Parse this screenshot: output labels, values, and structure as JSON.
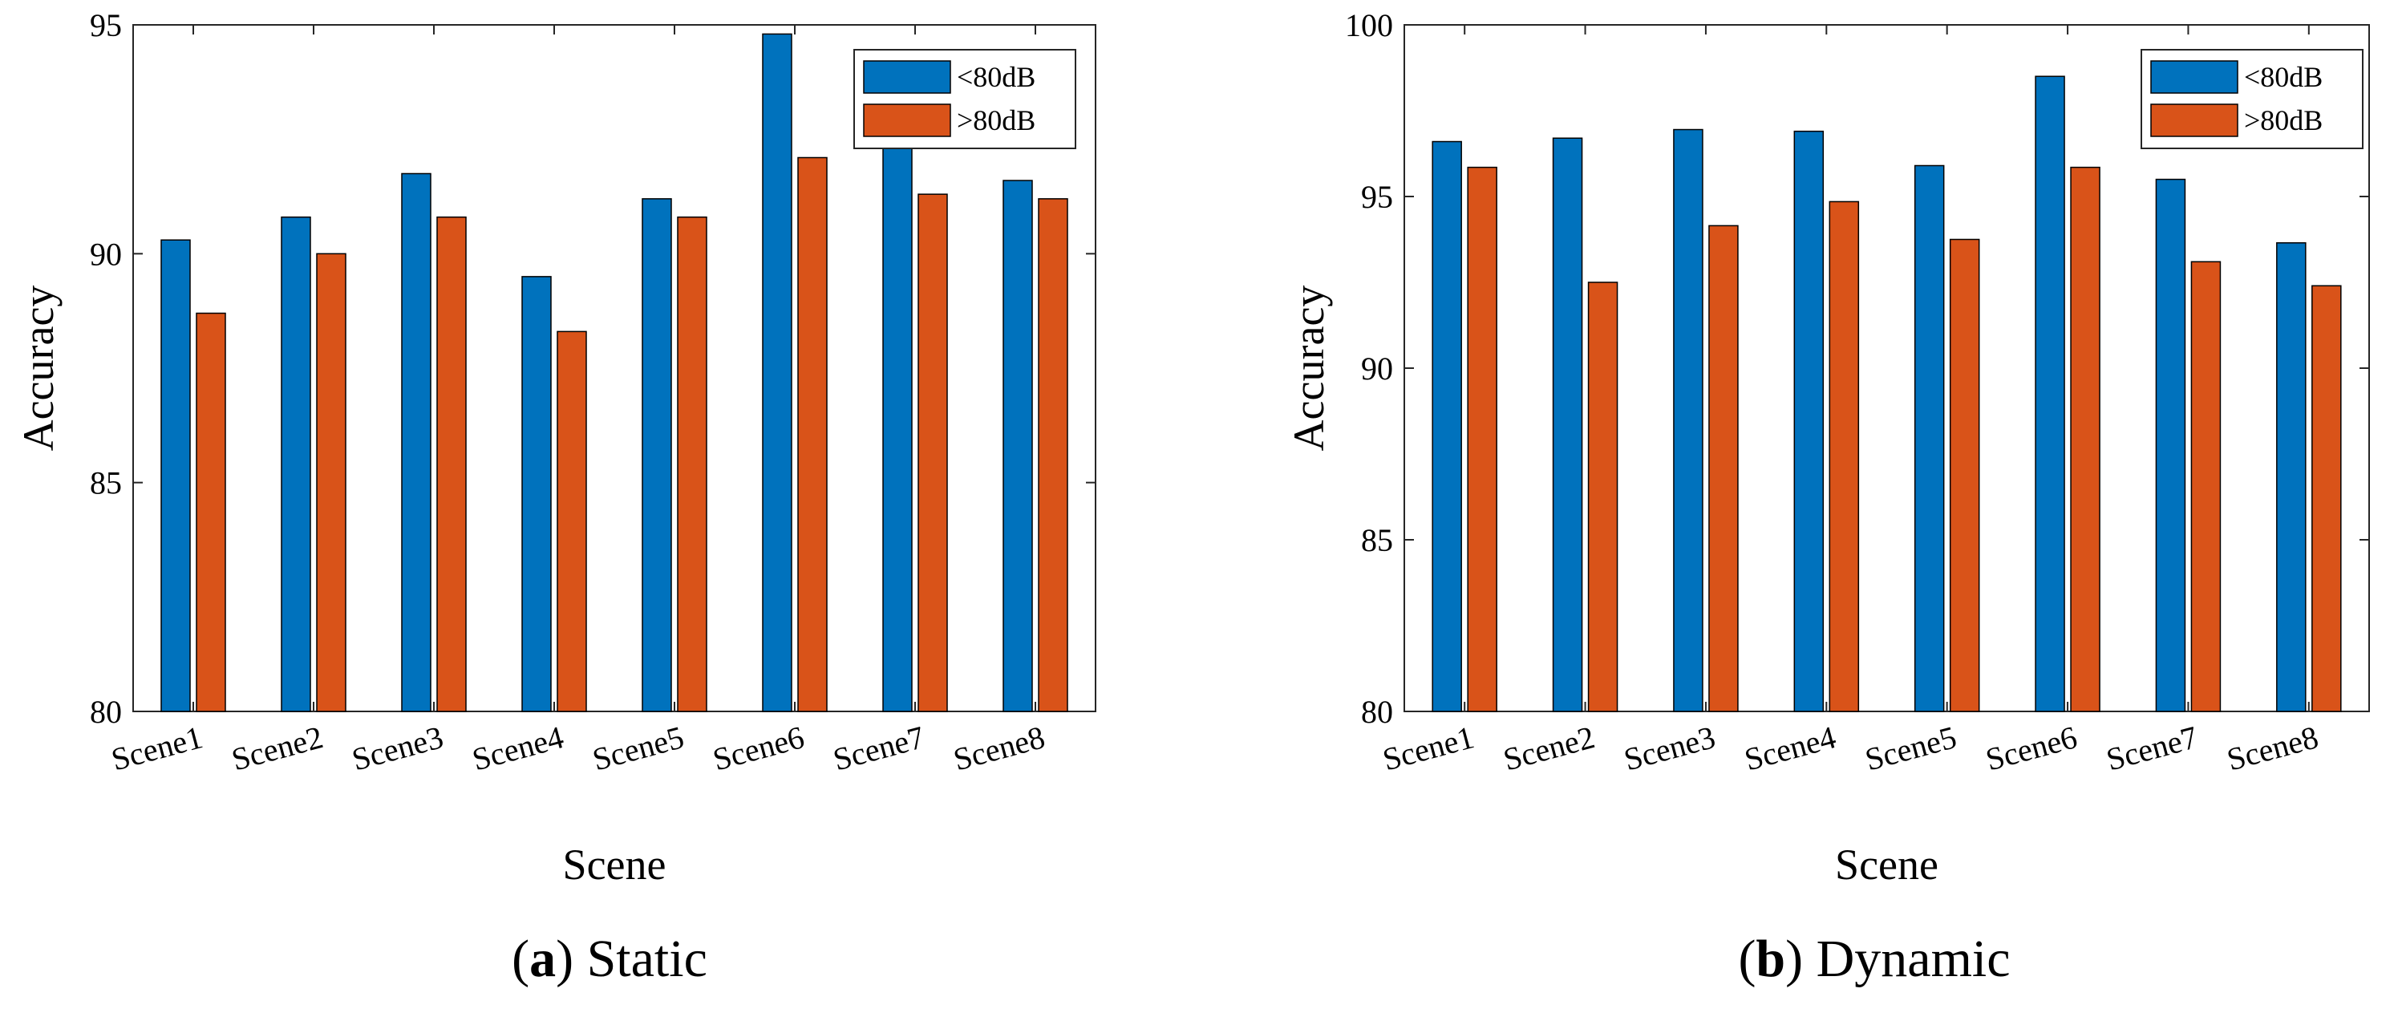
{
  "captions": [
    {
      "letter": "a",
      "text": " Static"
    },
    {
      "letter": "b",
      "text": " Dynamic"
    }
  ],
  "colors": {
    "series1": "#0072BD",
    "series2": "#D95319"
  },
  "chart_data": [
    {
      "type": "bar",
      "title": "Static",
      "xlabel": "Scene",
      "ylabel": "Accuracy",
      "ylim": [
        80,
        95
      ],
      "yticks": [
        80,
        85,
        90,
        95
      ],
      "categories": [
        "Scene1",
        "Scene2",
        "Scene3",
        "Scene4",
        "Scene5",
        "Scene6",
        "Scene7",
        "Scene8"
      ],
      "series": [
        {
          "name": "<80dB",
          "values": [
            90.3,
            90.8,
            91.75,
            89.5,
            91.2,
            94.8,
            92.3,
            91.6
          ]
        },
        {
          "name": ">80dB",
          "values": [
            88.7,
            90.0,
            90.8,
            88.3,
            90.8,
            92.1,
            91.3,
            91.2
          ]
        }
      ],
      "legend": "top-right",
      "grid": false
    },
    {
      "type": "bar",
      "title": "Dynamic",
      "xlabel": "Scene",
      "ylabel": "Accuracy",
      "ylim": [
        80,
        100
      ],
      "yticks": [
        80,
        85,
        90,
        95,
        100
      ],
      "categories": [
        "Scene1",
        "Scene2",
        "Scene3",
        "Scene4",
        "Scene5",
        "Scene6",
        "Scene7",
        "Scene8"
      ],
      "series": [
        {
          "name": "<80dB",
          "values": [
            96.6,
            96.7,
            96.95,
            96.9,
            95.9,
            98.5,
            95.5,
            93.65
          ]
        },
        {
          "name": ">80dB",
          "values": [
            95.85,
            92.5,
            94.15,
            94.85,
            93.75,
            95.85,
            93.1,
            92.4
          ]
        }
      ],
      "legend": "top-right",
      "grid": false
    }
  ]
}
